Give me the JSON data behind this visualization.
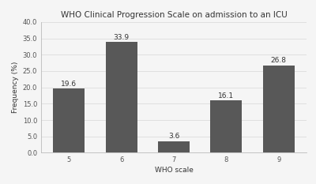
{
  "categories": [
    "5",
    "6",
    "7",
    "8",
    "9"
  ],
  "values": [
    19.6,
    33.9,
    3.6,
    16.1,
    26.8
  ],
  "bar_color": "#585858",
  "title": "WHO Clinical Progression Scale on admission to an ICU",
  "xlabel": "WHO scale",
  "ylabel": "Frequency (%)",
  "ylim": [
    0,
    40.0
  ],
  "yticks": [
    0.0,
    5.0,
    10.0,
    15.0,
    20.0,
    25.0,
    30.0,
    35.0,
    40.0
  ],
  "background_color": "#f5f5f5",
  "title_fontsize": 7.5,
  "axis_label_fontsize": 6.5,
  "tick_fontsize": 6.0,
  "bar_label_fontsize": 6.5,
  "bar_width": 0.6,
  "grid_color": "#d8d8d8",
  "spine_color": "#bbbbbb"
}
